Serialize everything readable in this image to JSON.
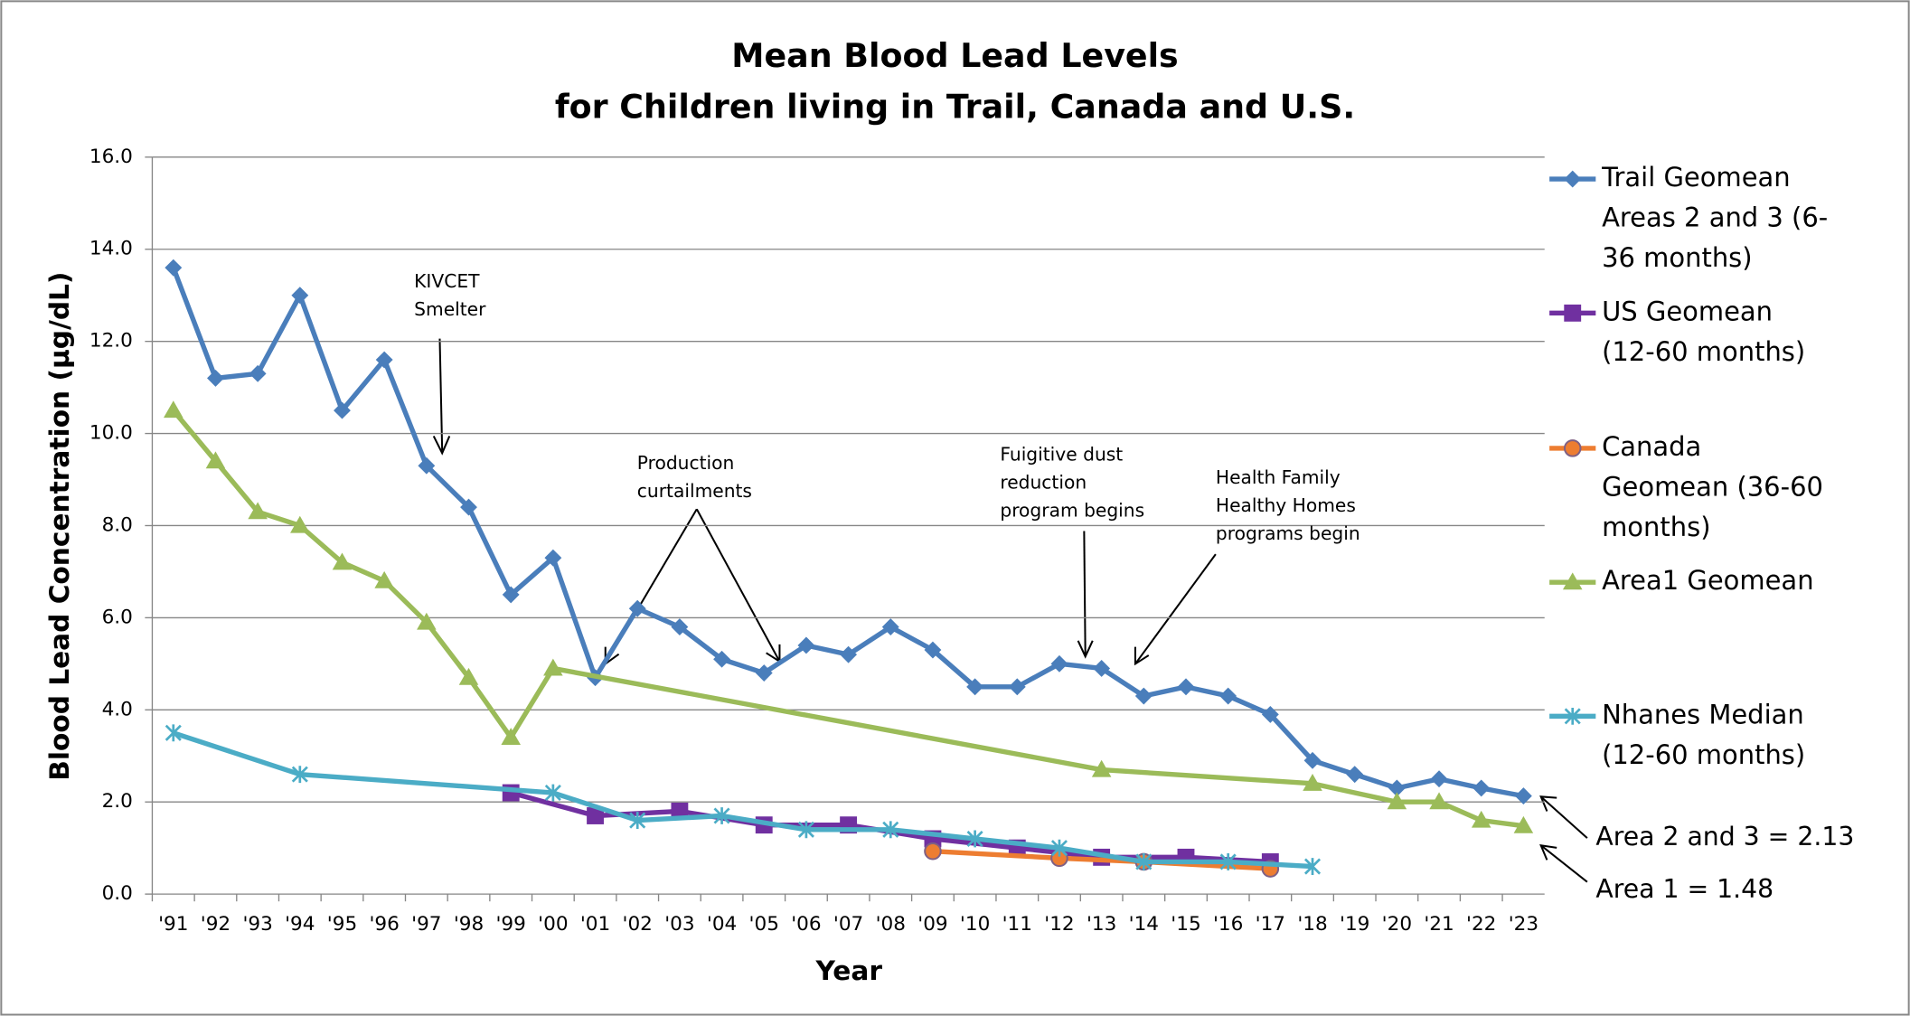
{
  "chart_data": {
    "type": "line",
    "title": "Mean Blood Lead Levels\nfor Children living in Trail, Canada and U.S.",
    "x_label": "Year",
    "y_label": "Blood Lead Concentration (µg/dL)",
    "categories": [
      "'91",
      "'92",
      "'93",
      "'94",
      "'95",
      "'96",
      "'97",
      "'98",
      "'99",
      "'00",
      "'01",
      "'02",
      "'03",
      "'04",
      "'05",
      "'06",
      "'07",
      "'08",
      "'09",
      "'10",
      "'11",
      "'12",
      "'13",
      "'14",
      "'15",
      "'16",
      "'17",
      "'18",
      "'19",
      "'20",
      "'21",
      "'22",
      "'23"
    ],
    "ylim": [
      0,
      16
    ],
    "yticks": [
      {
        "value": 0,
        "label": "0.0"
      },
      {
        "value": 2,
        "label": "2.0"
      },
      {
        "value": 4,
        "label": "4.0"
      },
      {
        "value": 6,
        "label": "6.0"
      },
      {
        "value": 8,
        "label": "8.0"
      },
      {
        "value": 10,
        "label": "10.0"
      },
      {
        "value": 12,
        "label": "12.0"
      },
      {
        "value": 14,
        "label": "14.0"
      },
      {
        "value": 16,
        "label": "16.0"
      }
    ],
    "grid": true,
    "legend": "right",
    "series": [
      {
        "name": "Trail Geomean Areas 2 and 3 (6-36 months)",
        "color": "#4a7ebb",
        "marker": "diamond",
        "values": [
          13.6,
          11.2,
          11.3,
          13.0,
          10.5,
          11.6,
          9.3,
          8.4,
          6.5,
          7.3,
          4.7,
          6.2,
          5.8,
          5.1,
          4.8,
          5.4,
          5.2,
          5.8,
          5.3,
          4.5,
          4.5,
          5.0,
          4.9,
          4.3,
          4.5,
          4.3,
          3.9,
          2.9,
          2.6,
          2.3,
          2.5,
          2.3,
          2.13
        ]
      },
      {
        "name": "US Geomean (12-60 months)",
        "color": "#7030a0",
        "marker": "square",
        "x": [
          "'99",
          "'01",
          "'03",
          "'05",
          "'07",
          "'09",
          "'11",
          "'13",
          "'15",
          "'17"
        ],
        "values": [
          2.2,
          1.7,
          1.8,
          1.5,
          1.5,
          1.2,
          1.0,
          0.8,
          0.8,
          0.7
        ]
      },
      {
        "name": "Canada Geomean (36-60 months)",
        "color": "#ed7d31",
        "marker": "circle",
        "x": [
          "'09",
          "'12",
          "'14",
          "'17"
        ],
        "values": [
          0.93,
          0.78,
          0.7,
          0.55
        ]
      },
      {
        "name": "Area1 Geomean",
        "color": "#9bbb59",
        "marker": "triangle",
        "x": [
          "'91",
          "'92",
          "'93",
          "'94",
          "'95",
          "'96",
          "'97",
          "'98",
          "'99",
          "'00",
          "'13",
          "'18",
          "'20",
          "'21",
          "'22",
          "'23"
        ],
        "values": [
          10.5,
          9.4,
          8.3,
          8.0,
          7.2,
          6.8,
          5.9,
          4.7,
          3.4,
          4.9,
          2.7,
          2.4,
          2.0,
          2.0,
          1.6,
          1.48
        ]
      },
      {
        "name": "Nhanes Median (12-60 months)",
        "color": "#4bacc6",
        "marker": "star",
        "x": [
          "'91",
          "'94",
          "'00",
          "'02",
          "'04",
          "'06",
          "'08",
          "'10",
          "'12",
          "'14",
          "'16",
          "'18"
        ],
        "values": [
          3.5,
          2.6,
          2.2,
          1.6,
          1.7,
          1.4,
          1.4,
          1.2,
          1.0,
          0.7,
          0.7,
          0.6
        ]
      }
    ],
    "annotations": [
      "KIVCET\nSmelter",
      "Production\ncurtailments",
      "Fuigitive dust\nreduction\nprogram begins",
      "Health Family\nHealthy Homes\nprograms begin",
      "Area 2 and 3 =  2.13",
      "Area 1 = 1.48"
    ]
  }
}
